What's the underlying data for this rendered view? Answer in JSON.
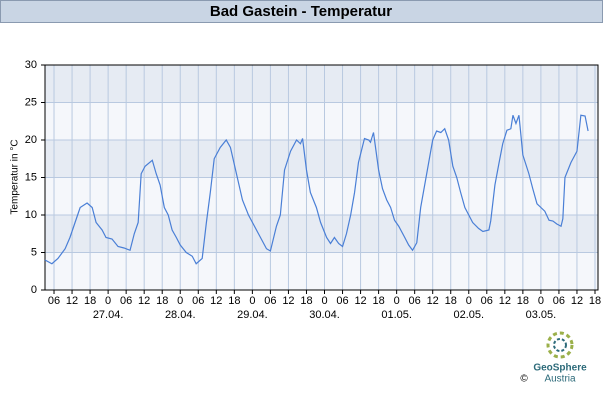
{
  "chart_data": {
    "type": "line",
    "title": "Bad Gastein - Temperatur",
    "ylabel": "Temperatur in °C",
    "xlim": [
      3,
      187
    ],
    "ylim": [
      0,
      30
    ],
    "yticks": [
      0,
      5,
      10,
      15,
      20,
      25,
      30
    ],
    "grid": true,
    "xticks": [
      {
        "value": 6,
        "label": "06"
      },
      {
        "value": 12,
        "label": "12"
      },
      {
        "value": 18,
        "label": "18"
      },
      {
        "value": 24,
        "label": "0"
      },
      {
        "value": 30,
        "label": "06"
      },
      {
        "value": 36,
        "label": "12"
      },
      {
        "value": 42,
        "label": "18"
      },
      {
        "value": 48,
        "label": "0"
      },
      {
        "value": 54,
        "label": "06"
      },
      {
        "value": 60,
        "label": "12"
      },
      {
        "value": 66,
        "label": "18"
      },
      {
        "value": 72,
        "label": "0"
      },
      {
        "value": 78,
        "label": "06"
      },
      {
        "value": 84,
        "label": "12"
      },
      {
        "value": 90,
        "label": "18"
      },
      {
        "value": 96,
        "label": "0"
      },
      {
        "value": 102,
        "label": "06"
      },
      {
        "value": 108,
        "label": "12"
      },
      {
        "value": 114,
        "label": "18"
      },
      {
        "value": 120,
        "label": "0"
      },
      {
        "value": 126,
        "label": "06"
      },
      {
        "value": 132,
        "label": "12"
      },
      {
        "value": 138,
        "label": "18"
      },
      {
        "value": 144,
        "label": "0"
      },
      {
        "value": 150,
        "label": "06"
      },
      {
        "value": 156,
        "label": "12"
      },
      {
        "value": 162,
        "label": "18"
      },
      {
        "value": 168,
        "label": "0"
      },
      {
        "value": 174,
        "label": "06"
      },
      {
        "value": 180,
        "label": "12"
      },
      {
        "value": 186,
        "label": "18"
      }
    ],
    "day_labels": [
      {
        "value": 24,
        "label": "27.04."
      },
      {
        "value": 48,
        "label": "28.04."
      },
      {
        "value": 72,
        "label": "29.04."
      },
      {
        "value": 96,
        "label": "30.04."
      },
      {
        "value": 120,
        "label": "01.05."
      },
      {
        "value": 144,
        "label": "02.05."
      },
      {
        "value": 168,
        "label": "03.05."
      }
    ],
    "series": [
      {
        "color": "#4a7fd6",
        "x": [
          3,
          5.3,
          7.3,
          9.7,
          11.3,
          13,
          14.7,
          17,
          18.7,
          20,
          22,
          23.3,
          25.3,
          27.3,
          29.3,
          31.3,
          32.7,
          34,
          35,
          36.3,
          38.7,
          40,
          41.3,
          42.7,
          44,
          45.3,
          46.7,
          48,
          50,
          52,
          53.3,
          55.3,
          56.7,
          58,
          59.3,
          61.3,
          63.3,
          64.7,
          66.7,
          68.7,
          70.7,
          72.7,
          74.7,
          76.7,
          78,
          80,
          81.3,
          82.7,
          84.7,
          86.7,
          88,
          88.7,
          90,
          91.3,
          93.3,
          94.7,
          96.7,
          98,
          99.3,
          100.7,
          102,
          103.3,
          104.7,
          106,
          107.3,
          109.3,
          110.7,
          111.3,
          112.3,
          114,
          115.3,
          116.7,
          118,
          119.3,
          120.7,
          122.7,
          124,
          125.3,
          126.7,
          128,
          130,
          132,
          133.3,
          134.7,
          136,
          137.3,
          138.7,
          140,
          141.3,
          142.7,
          144,
          145.3,
          147.3,
          148.7,
          150.7,
          151.3,
          152.7,
          154,
          155.3,
          156.7,
          158,
          158.7,
          159.7,
          160.7,
          162,
          164,
          165.3,
          166.7,
          168,
          169.3,
          170.7,
          172,
          173.3,
          174.7,
          175.3,
          176,
          178,
          180,
          181.3,
          182.7,
          183.7
        ],
        "values": [
          4.0,
          3.5,
          4.2,
          5.5,
          7,
          9,
          11,
          11.6,
          11,
          9,
          8,
          7,
          6.8,
          5.8,
          5.6,
          5.3,
          7.5,
          9,
          15.5,
          16.5,
          17.3,
          15.5,
          14,
          11,
          10,
          8,
          7,
          6,
          5,
          4.5,
          3.5,
          4.2,
          9,
          13,
          17.5,
          19,
          20,
          19,
          15.5,
          12,
          10,
          8.5,
          7,
          5.5,
          5.2,
          8.5,
          10,
          16,
          18.5,
          20,
          19.5,
          20.2,
          16,
          13,
          11,
          9,
          7,
          6.2,
          7,
          6.2,
          5.8,
          7.5,
          10,
          13,
          17,
          20.2,
          20,
          19.7,
          21,
          16,
          13.5,
          12,
          11,
          9.3,
          8.5,
          7,
          6,
          5.3,
          6.3,
          11,
          15.5,
          20,
          21.2,
          21,
          21.5,
          20,
          16.5,
          15,
          13,
          11,
          10,
          9,
          8.2,
          7.8,
          8,
          9.2,
          14,
          16.8,
          19.5,
          21.3,
          21.5,
          23.3,
          22.2,
          23.3,
          18,
          15.5,
          13.5,
          11.5,
          11,
          10.5,
          9.3,
          9.2,
          8.8,
          8.5,
          9.5,
          15,
          17,
          18.5,
          23.3,
          23.2,
          21.2
        ]
      }
    ]
  },
  "footer": {
    "logo_name": "GeoSphere",
    "logo_sub": "Austria",
    "copyright": "©"
  }
}
